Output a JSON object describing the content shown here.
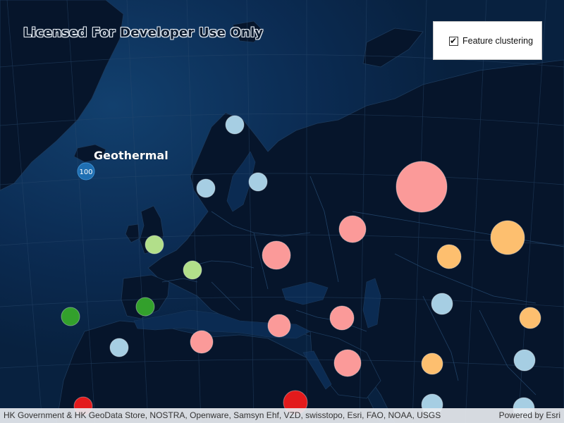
{
  "watermark": "Licensed For Developer Use Only",
  "panel": {
    "label": "Feature clustering",
    "checked": true
  },
  "attribution": {
    "left": "HK Government & HK GeoData Store, NOSTRA, Openware, Samsyn Ehf, VZD, swisstopo, Esri, FAO, NOAA, USGS",
    "right": "Powered by Esri"
  },
  "popup_label": {
    "title": "Geothermal",
    "count": "100"
  },
  "colors": {
    "ocean": "#0a2547",
    "land": "#06152b",
    "accent_blue": "#1f6fb2"
  },
  "clusters": [
    {
      "category": "light-blue",
      "color": "#a6cee3"
    },
    {
      "category": "light-blue",
      "color": "#a6cee3"
    },
    {
      "category": "light-blue",
      "color": "#a6cee3"
    },
    {
      "category": "light-green",
      "color": "#b2df8a"
    },
    {
      "category": "light-green",
      "color": "#b2df8a"
    },
    {
      "category": "green",
      "color": "#33a02c"
    },
    {
      "category": "green",
      "color": "#33a02c"
    },
    {
      "category": "light-blue",
      "color": "#a6cee3"
    },
    {
      "category": "pink",
      "color": "#fb9a99"
    },
    {
      "category": "pink",
      "color": "#fb9a99"
    },
    {
      "category": "pink",
      "color": "#fb9a99"
    },
    {
      "category": "pink",
      "color": "#fb9a99"
    },
    {
      "category": "pink",
      "color": "#fb9a99"
    },
    {
      "category": "pink",
      "color": "#fb9a99"
    },
    {
      "category": "pink",
      "color": "#fb9a99"
    },
    {
      "category": "orange",
      "color": "#fdbf6f"
    },
    {
      "category": "orange",
      "color": "#fdbf6f"
    },
    {
      "category": "light-blue",
      "color": "#a6cee3"
    },
    {
      "category": "orange",
      "color": "#fdbf6f"
    },
    {
      "category": "orange",
      "color": "#fdbf6f"
    },
    {
      "category": "light-blue",
      "color": "#a6cee3"
    },
    {
      "category": "light-blue",
      "color": "#a6cee3"
    },
    {
      "category": "light-blue",
      "color": "#a6cee3"
    },
    {
      "category": "red",
      "color": "#e31a1c"
    },
    {
      "category": "red",
      "color": "#e31a1c"
    }
  ]
}
